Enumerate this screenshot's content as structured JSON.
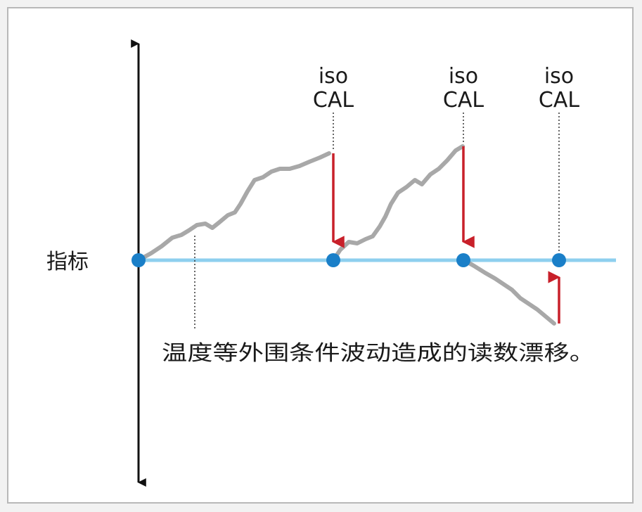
{
  "diagram": {
    "reference_label": "指标",
    "annotation": "温度等外围条件波动造成的读数漂移。",
    "calibration_markers": [
      {
        "line1": "iso",
        "line2": "CAL"
      },
      {
        "line1": "iso",
        "line2": "CAL"
      },
      {
        "line1": "iso",
        "line2": "CAL"
      }
    ],
    "colors": {
      "reference_line": "#8ecfee",
      "calibration_point": "#1a7fc8",
      "drift_curve": "#a8a8a8",
      "correction_arrow": "#c8202a",
      "axis": "#111111",
      "frame_border": "#b8b8b8"
    }
  }
}
